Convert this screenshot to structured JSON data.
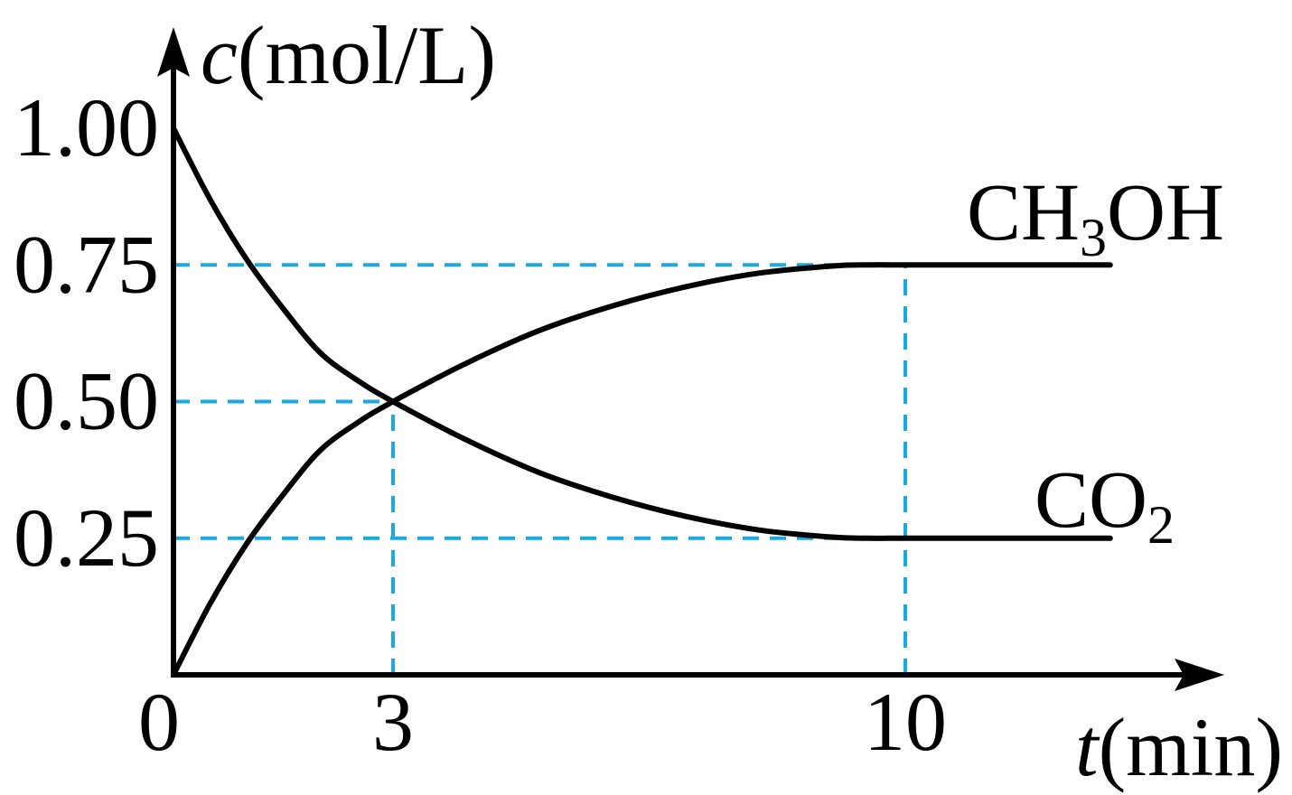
{
  "chart_data": {
    "type": "line",
    "xlabel": {
      "var": "t",
      "unit": "(min)"
    },
    "ylabel": {
      "var": "c",
      "unit": "(mol/L)"
    },
    "x_ticks": [
      {
        "value": 0,
        "label": "0"
      },
      {
        "value": 3,
        "label": "3"
      },
      {
        "value": 10,
        "label": "10"
      }
    ],
    "y_ticks": [
      {
        "value": 1.0,
        "label": "1.00"
      },
      {
        "value": 0.75,
        "label": "0.75"
      },
      {
        "value": 0.5,
        "label": "0.50"
      },
      {
        "value": 0.25,
        "label": "0.25"
      }
    ],
    "xlim": [
      0,
      13.5
    ],
    "ylim": [
      0,
      1.0
    ],
    "series": [
      {
        "name": "CH3OH",
        "label_parts": {
          "main": "CH",
          "sub": "3",
          "rest": "OH"
        },
        "x": [
          0,
          0.5,
          1,
          1.5,
          2,
          2.5,
          3,
          4,
          5,
          6,
          7,
          8,
          9,
          9.5,
          10,
          11,
          12.8
        ],
        "y": [
          0,
          0.13,
          0.24,
          0.33,
          0.41,
          0.46,
          0.5,
          0.57,
          0.63,
          0.675,
          0.71,
          0.735,
          0.748,
          0.75,
          0.75,
          0.75,
          0.75
        ]
      },
      {
        "name": "CO2",
        "label_parts": {
          "main": "CO",
          "sub": "2",
          "rest": ""
        },
        "x": [
          0,
          0.5,
          1,
          1.5,
          2,
          2.5,
          3,
          4,
          5,
          6,
          7,
          8,
          9,
          9.5,
          10,
          11,
          12.8
        ],
        "y": [
          1.0,
          0.87,
          0.76,
          0.67,
          0.59,
          0.54,
          0.5,
          0.43,
          0.37,
          0.325,
          0.29,
          0.265,
          0.252,
          0.25,
          0.25,
          0.25,
          0.25
        ]
      }
    ],
    "guides": [
      {
        "type": "h",
        "y": 0.75,
        "x_to": 10
      },
      {
        "type": "h",
        "y": 0.5,
        "x_to": 3
      },
      {
        "type": "h",
        "y": 0.25,
        "x_to": 10
      },
      {
        "type": "v",
        "x": 3,
        "y_to": 0.5
      },
      {
        "type": "v",
        "x": 10,
        "y_to": 0.75
      }
    ],
    "colors": {
      "axis": "#000000",
      "line": "#000000",
      "guide": "#1aa9e0"
    }
  }
}
